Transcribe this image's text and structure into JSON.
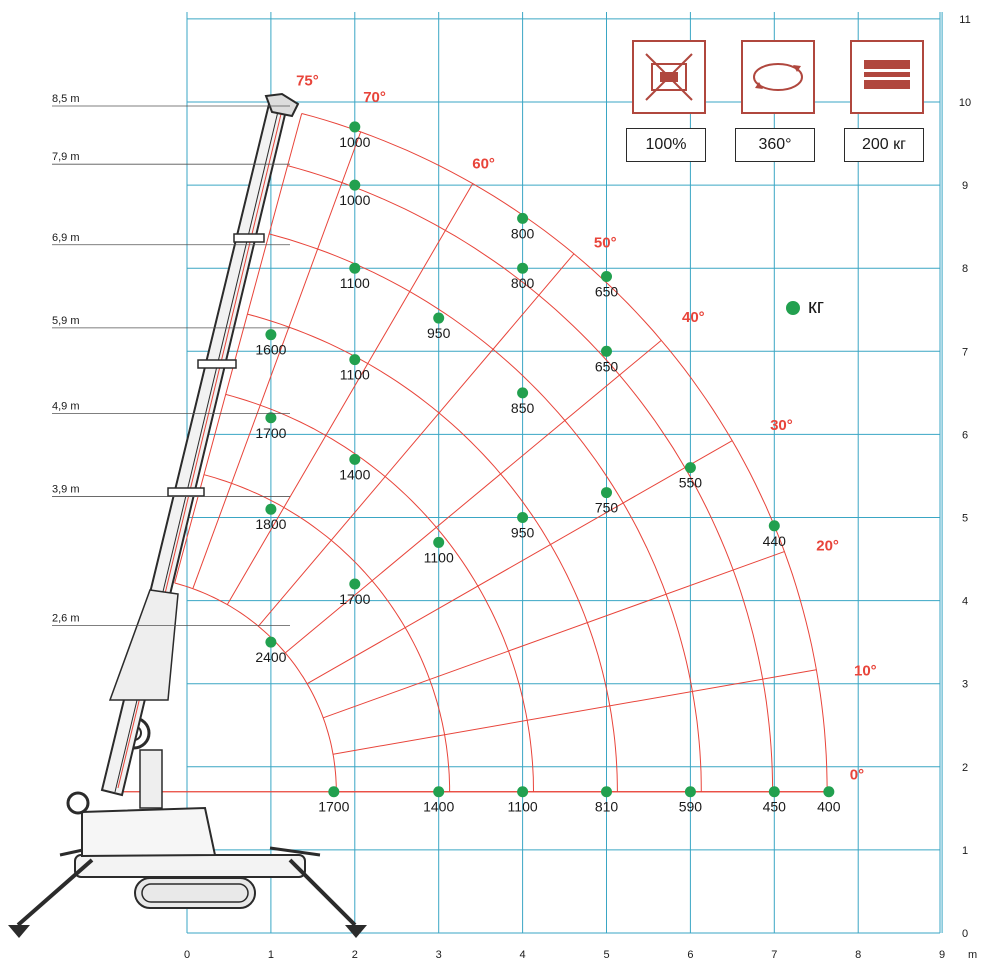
{
  "chart_data": {
    "type": "scatter",
    "x_unit": "m",
    "xlim": [
      0,
      9
    ],
    "ylim": [
      0,
      11
    ],
    "x_ticks": [
      "0",
      "1",
      "2",
      "3",
      "4",
      "5",
      "6",
      "7",
      "8",
      "9"
    ],
    "y_ticks": [
      "0",
      "1",
      "2",
      "3",
      "4",
      "5",
      "6",
      "7",
      "8",
      "9",
      "10",
      "11"
    ],
    "boom_lengths": [
      "8,5 m",
      "7,9 m",
      "6,9 m",
      "5,9 m",
      "4,9 m",
      "3,9 m",
      "2,6 m"
    ],
    "angles": [
      "75°",
      "70°",
      "60°",
      "50°",
      "40°",
      "30°",
      "20°",
      "10°",
      "0°"
    ],
    "legend": "кг",
    "load_unit": "кг",
    "points": [
      {
        "x": 2,
        "y": 9.7,
        "load": "1000"
      },
      {
        "x": 2,
        "y": 9.0,
        "load": "1000"
      },
      {
        "x": 4,
        "y": 8.6,
        "load": "800"
      },
      {
        "x": 2,
        "y": 8.0,
        "load": "1100"
      },
      {
        "x": 4,
        "y": 8.0,
        "load": "800"
      },
      {
        "x": 5,
        "y": 7.9,
        "load": "650"
      },
      {
        "x": 1,
        "y": 7.2,
        "load": "1600"
      },
      {
        "x": 3,
        "y": 7.4,
        "load": "950"
      },
      {
        "x": 2,
        "y": 6.9,
        "load": "1100"
      },
      {
        "x": 5,
        "y": 7.0,
        "load": "650"
      },
      {
        "x": 4,
        "y": 6.5,
        "load": "850"
      },
      {
        "x": 1,
        "y": 6.2,
        "load": "1700"
      },
      {
        "x": 2,
        "y": 5.7,
        "load": "1400"
      },
      {
        "x": 6,
        "y": 5.6,
        "load": "550"
      },
      {
        "x": 1,
        "y": 5.1,
        "load": "1800"
      },
      {
        "x": 5,
        "y": 5.3,
        "load": "750"
      },
      {
        "x": 4,
        "y": 5.0,
        "load": "950"
      },
      {
        "x": 7,
        "y": 4.9,
        "load": "440"
      },
      {
        "x": 3,
        "y": 4.7,
        "load": "1100"
      },
      {
        "x": 2,
        "y": 4.2,
        "load": "1700"
      },
      {
        "x": 1,
        "y": 3.5,
        "load": "2400"
      },
      {
        "x": 1.75,
        "y": 1.7,
        "load": "1700"
      },
      {
        "x": 3,
        "y": 1.7,
        "load": "1400"
      },
      {
        "x": 4,
        "y": 1.7,
        "load": "1100"
      },
      {
        "x": 5,
        "y": 1.7,
        "load": "810"
      },
      {
        "x": 6,
        "y": 1.7,
        "load": "590"
      },
      {
        "x": 7,
        "y": 1.7,
        "load": "450"
      },
      {
        "x": 7.65,
        "y": 1.7,
        "load": "400"
      }
    ]
  },
  "badges": [
    {
      "icon": "outrigger-icon",
      "caption": "100%"
    },
    {
      "icon": "rotation-icon",
      "caption": "360°"
    },
    {
      "icon": "weight-icon",
      "caption": "200 кг"
    }
  ],
  "colors": {
    "grid": "#3aa6c4",
    "curve": "#e8443a",
    "point": "#22a04f",
    "icon_border": "#b0473e",
    "icon_fill": "#b0473e",
    "crane": "#2b2b2b"
  }
}
